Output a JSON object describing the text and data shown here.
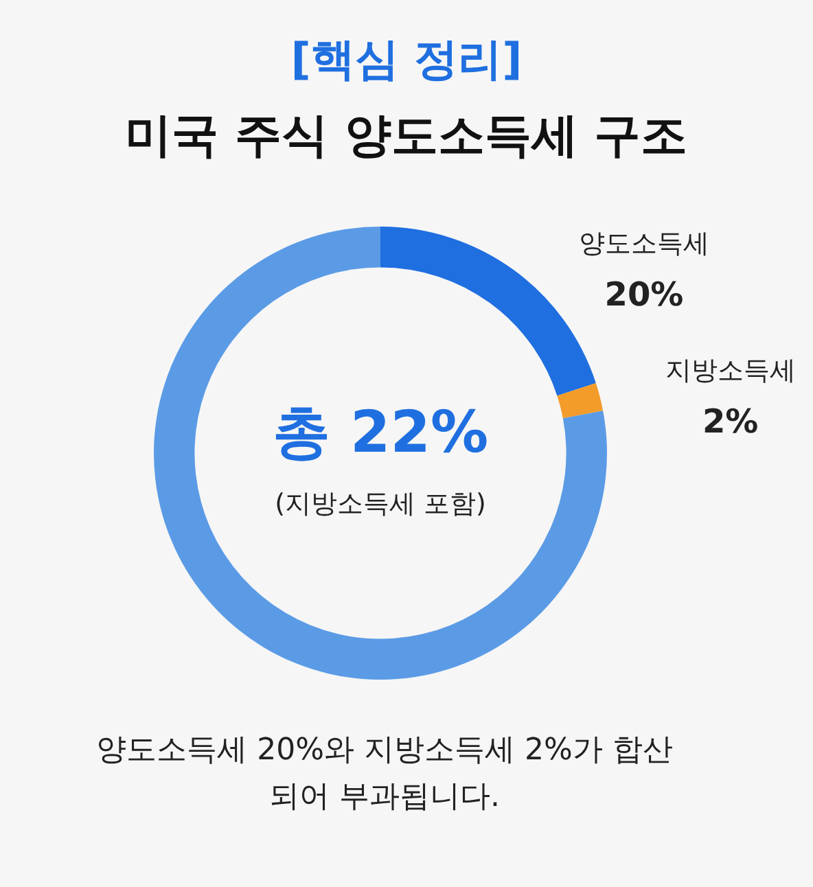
{
  "chart_data": {
    "type": "donut",
    "title": "[핵심 정리]",
    "subtitle": "미국 주식 양도소득세 구조",
    "categories": [
      "양도소득세",
      "지방소득세",
      null
    ],
    "values": [
      20,
      2,
      78
    ],
    "colors": [
      "#1f6fe0",
      "#f39c2a",
      "#5b9be6"
    ],
    "value_labels": [
      "20%",
      "2%",
      null
    ],
    "legend": false,
    "annotations": [
      "총 22%",
      "(지방소득세 포함)",
      "양도소득세 20%와 지방소득세 2%가 합산되어 부과됩니다."
    ]
  }
}
